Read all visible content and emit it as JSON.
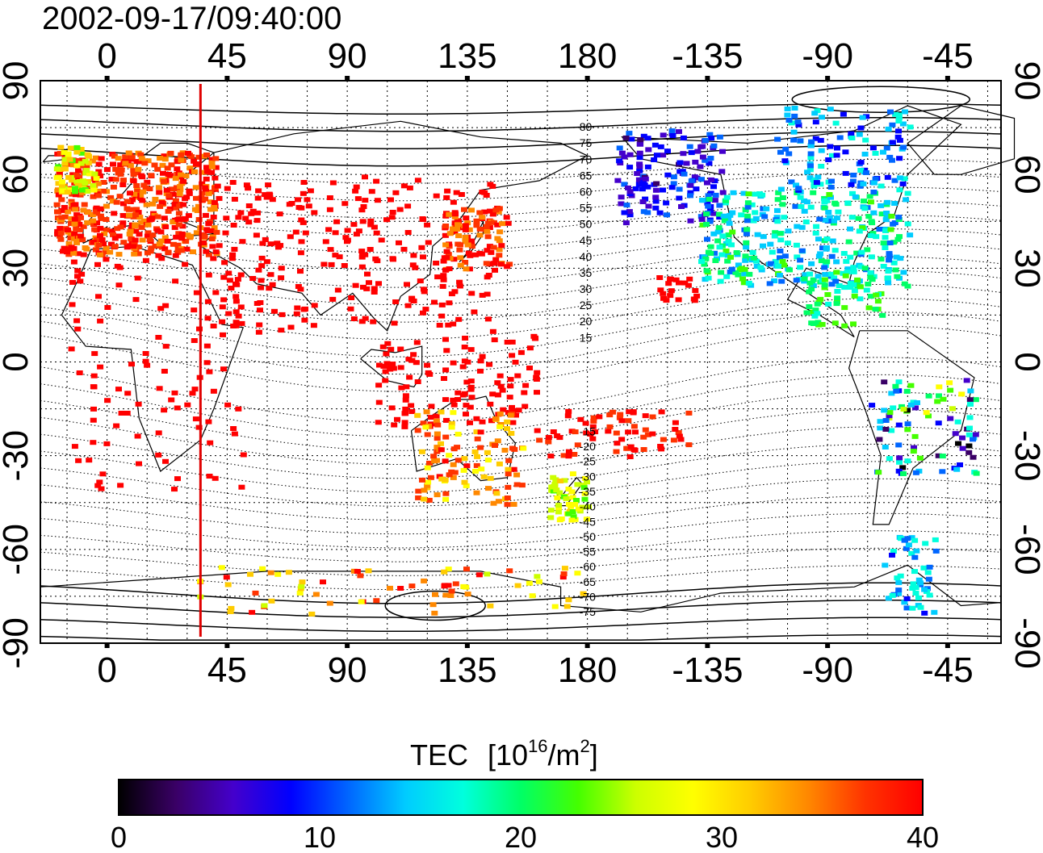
{
  "title": "2002-09-17/09:40:00",
  "colorbar": {
    "label": "TEC",
    "unit_prefix": "[10",
    "unit_exp1": "16",
    "unit_mid": "/m",
    "unit_exp2": "2",
    "unit_suffix": "]",
    "min": 0,
    "max": 40,
    "ticks": [
      "0",
      "10",
      "20",
      "30",
      "40"
    ],
    "colors": [
      "#000000",
      "#3a0066",
      "#4400cc",
      "#0000ff",
      "#0066ff",
      "#00ccff",
      "#00ffdd",
      "#00ff66",
      "#44ff00",
      "#ccff00",
      "#ffff00",
      "#ffcc00",
      "#ff8800",
      "#ff3300",
      "#ff0000"
    ]
  },
  "map": {
    "lon_ticks": [
      "0",
      "45",
      "90",
      "135",
      "180",
      "-135",
      "-90",
      "-45"
    ],
    "lat_ticks_left": [
      "90",
      "60",
      "30",
      "0",
      "-30",
      "-60",
      "-90"
    ],
    "lat_ticks_right": [
      "90",
      "60",
      "30",
      "0",
      "-30",
      "-60",
      "-90"
    ],
    "lon_range": [
      -25,
      335
    ],
    "lat_range": [
      -90,
      90
    ],
    "terminator_lon": 35,
    "terminator_color": "#e00000",
    "contour_labels": [
      "80",
      "75",
      "70",
      "65",
      "60",
      "55",
      "50",
      "45",
      "40",
      "35",
      "30",
      "25",
      "20",
      "15",
      "-15",
      "-20",
      "-25",
      "-30",
      "-35",
      "-40",
      "-45",
      "-50",
      "-55",
      "-60",
      "-65",
      "-70",
      "-75"
    ]
  }
}
